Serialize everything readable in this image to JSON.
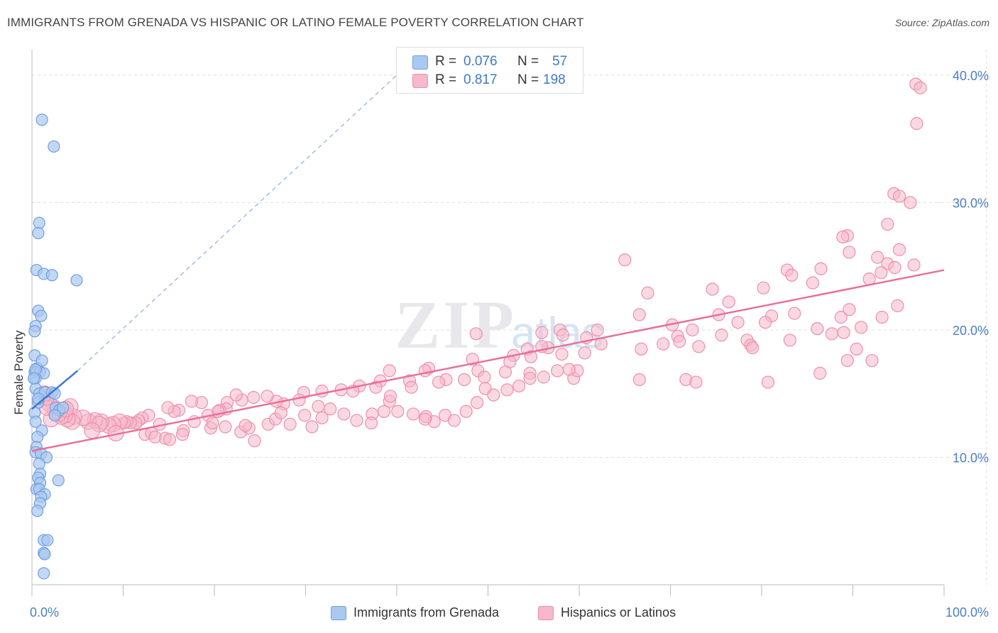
{
  "header": {
    "title": "IMMIGRANTS FROM GRENADA VS HISPANIC OR LATINO FEMALE POVERTY CORRELATION CHART",
    "source": "Source: ZipAtlas.com"
  },
  "legend": {
    "rows": [
      {
        "r_label": "R =",
        "r_value": "0.076",
        "n_label": "N =",
        "n_value": "57"
      },
      {
        "r_label": "R =",
        "r_value": "0.817",
        "n_label": "N =",
        "n_value": "198"
      }
    ]
  },
  "colors": {
    "blue_fill": "#aac8f0",
    "blue_stroke": "#6f9fe0",
    "blue_line": "#3c78d8",
    "pink_fill": "#f6b8cb",
    "pink_stroke": "#ee8fad",
    "pink_line": "#e8709a",
    "grid": "#dddddd",
    "tick_text": "#4a7fc7"
  },
  "chart_data": {
    "type": "scatter",
    "title": "IMMIGRANTS FROM GRENADA VS HISPANIC OR LATINO FEMALE POVERTY CORRELATION CHART",
    "xlabel": "",
    "ylabel": "Female Poverty",
    "xlim": [
      0,
      100
    ],
    "ylim": [
      0,
      42
    ],
    "x_tick_labels": [
      "0.0%",
      "100.0%"
    ],
    "y_ticks": [
      10,
      20,
      30,
      40
    ],
    "y_tick_labels": [
      "10.0%",
      "20.0%",
      "30.0%",
      "40.0%"
    ],
    "grid": true,
    "legend_placement": "bottom",
    "watermark": "ZIPatlas",
    "series": [
      {
        "name": "Immigrants from Grenada",
        "trend": {
          "x": [
            0,
            5
          ],
          "y": [
            13.8,
            16.8
          ],
          "dashed_extension_to": [
            40,
            40
          ]
        },
        "points": [
          [
            1.1,
            36.5
          ],
          [
            2.4,
            34.4
          ],
          [
            0.8,
            28.4
          ],
          [
            0.7,
            27.6
          ],
          [
            0.5,
            24.7
          ],
          [
            1.3,
            24.4
          ],
          [
            2.2,
            24.3
          ],
          [
            4.9,
            23.9
          ],
          [
            0.7,
            21.5
          ],
          [
            1.0,
            21.1
          ],
          [
            0.4,
            20.3
          ],
          [
            0.3,
            19.9
          ],
          [
            0.3,
            18.0
          ],
          [
            0.6,
            17.0
          ],
          [
            0.3,
            16.7
          ],
          [
            0.5,
            16.7
          ],
          [
            0.9,
            16.7
          ],
          [
            1.3,
            16.6
          ],
          [
            1.1,
            17.6
          ],
          [
            0.4,
            16.2
          ],
          [
            0.4,
            15.4
          ],
          [
            0.8,
            15.0
          ],
          [
            1.4,
            15.1
          ],
          [
            2.2,
            15.1
          ],
          [
            2.5,
            15.0
          ],
          [
            0.7,
            14.3
          ],
          [
            0.7,
            14.6
          ],
          [
            2.6,
            13.9
          ],
          [
            3.0,
            13.7
          ],
          [
            3.4,
            13.9
          ],
          [
            2.5,
            13.3
          ],
          [
            0.3,
            13.5
          ],
          [
            0.4,
            12.8
          ],
          [
            1.1,
            12.1
          ],
          [
            0.6,
            11.6
          ],
          [
            0.5,
            10.8
          ],
          [
            0.4,
            10.4
          ],
          [
            1.0,
            10.3
          ],
          [
            1.6,
            10.0
          ],
          [
            0.8,
            9.5
          ],
          [
            0.9,
            8.7
          ],
          [
            0.7,
            8.4
          ],
          [
            2.9,
            8.2
          ],
          [
            0.9,
            8.0
          ],
          [
            0.5,
            7.5
          ],
          [
            0.8,
            7.5
          ],
          [
            1.4,
            7.1
          ],
          [
            1.0,
            6.9
          ],
          [
            0.9,
            6.4
          ],
          [
            0.6,
            5.8
          ],
          [
            1.3,
            3.5
          ],
          [
            1.7,
            3.5
          ],
          [
            1.3,
            2.5
          ],
          [
            1.4,
            2.4
          ],
          [
            1.3,
            0.9
          ],
          [
            0.4,
            16.9
          ],
          [
            0.2,
            16.2
          ]
        ]
      },
      {
        "name": "Hispanics or Latinos",
        "trend": {
          "x": [
            0,
            100
          ],
          "y": [
            10.5,
            24.7
          ]
        },
        "points": [
          [
            96.9,
            39.3
          ],
          [
            97.4,
            39.0
          ],
          [
            97.0,
            36.2
          ],
          [
            94.5,
            30.7
          ],
          [
            95.1,
            30.5
          ],
          [
            96.3,
            30.0
          ],
          [
            93.8,
            28.3
          ],
          [
            89.4,
            27.4
          ],
          [
            88.9,
            27.3
          ],
          [
            95.1,
            26.3
          ],
          [
            89.6,
            26.1
          ],
          [
            92.7,
            25.7
          ],
          [
            93.8,
            25.2
          ],
          [
            94.6,
            24.9
          ],
          [
            96.7,
            25.1
          ],
          [
            93.1,
            24.5
          ],
          [
            65.0,
            25.5
          ],
          [
            86.5,
            24.8
          ],
          [
            82.8,
            24.7
          ],
          [
            83.3,
            24.3
          ],
          [
            91.8,
            24.0
          ],
          [
            85.6,
            23.7
          ],
          [
            74.6,
            23.2
          ],
          [
            80.2,
            23.3
          ],
          [
            67.5,
            22.9
          ],
          [
            76.4,
            22.2
          ],
          [
            94.9,
            21.9
          ],
          [
            89.6,
            21.6
          ],
          [
            83.6,
            21.3
          ],
          [
            75.3,
            21.2
          ],
          [
            66.6,
            21.2
          ],
          [
            93.2,
            21.0
          ],
          [
            88.7,
            21.0
          ],
          [
            81.1,
            21.1
          ],
          [
            80.4,
            20.6
          ],
          [
            77.4,
            20.6
          ],
          [
            70.2,
            20.4
          ],
          [
            90.9,
            20.2
          ],
          [
            86.1,
            20.1
          ],
          [
            72.4,
            20.0
          ],
          [
            62.0,
            20.0
          ],
          [
            57.9,
            20.0
          ],
          [
            55.9,
            19.8
          ],
          [
            48.7,
            19.7
          ],
          [
            58.2,
            19.6
          ],
          [
            60.8,
            19.4
          ],
          [
            70.8,
            19.5
          ],
          [
            71.0,
            19.1
          ],
          [
            69.2,
            18.9
          ],
          [
            62.4,
            18.9
          ],
          [
            87.7,
            19.7
          ],
          [
            89.0,
            19.8
          ],
          [
            75.6,
            19.6
          ],
          [
            78.4,
            19.2
          ],
          [
            83.1,
            19.2
          ],
          [
            90.4,
            18.5
          ],
          [
            78.8,
            18.8
          ],
          [
            79.0,
            18.6
          ],
          [
            73.1,
            18.7
          ],
          [
            66.8,
            18.5
          ],
          [
            60.6,
            18.2
          ],
          [
            56.6,
            18.6
          ],
          [
            55.9,
            18.7
          ],
          [
            54.3,
            18.5
          ],
          [
            58.1,
            18.1
          ],
          [
            54.7,
            17.9
          ],
          [
            52.8,
            18.0
          ],
          [
            52.4,
            17.5
          ],
          [
            48.3,
            17.7
          ],
          [
            48.9,
            16.8
          ],
          [
            54.6,
            16.6
          ],
          [
            59.4,
            16.2
          ],
          [
            66.6,
            16.1
          ],
          [
            71.7,
            16.1
          ],
          [
            72.8,
            15.9
          ],
          [
            80.7,
            15.9
          ],
          [
            86.4,
            16.6
          ],
          [
            89.4,
            17.6
          ],
          [
            92.1,
            17.6
          ],
          [
            59.8,
            16.8
          ],
          [
            58.9,
            16.9
          ],
          [
            57.6,
            16.8
          ],
          [
            56.1,
            16.3
          ],
          [
            54.6,
            16.2
          ],
          [
            51.9,
            16.7
          ],
          [
            49.6,
            16.3
          ],
          [
            47.4,
            16.1
          ],
          [
            45.4,
            16.1
          ],
          [
            44.6,
            15.9
          ],
          [
            43.5,
            17.0
          ],
          [
            43.1,
            16.8
          ],
          [
            41.4,
            16.0
          ],
          [
            41.6,
            15.5
          ],
          [
            39.2,
            16.8
          ],
          [
            38.2,
            16.0
          ],
          [
            37.7,
            15.5
          ],
          [
            35.9,
            15.6
          ],
          [
            35.2,
            15.2
          ],
          [
            33.9,
            15.3
          ],
          [
            31.8,
            15.2
          ],
          [
            29.8,
            15.1
          ],
          [
            29.3,
            14.5
          ],
          [
            27.6,
            14.2
          ],
          [
            26.8,
            14.4
          ],
          [
            25.8,
            14.8
          ],
          [
            24.3,
            14.7
          ],
          [
            23.0,
            14.5
          ],
          [
            22.4,
            14.9
          ],
          [
            21.4,
            14.3
          ],
          [
            21.3,
            13.8
          ],
          [
            20.6,
            13.7
          ],
          [
            20.4,
            13.6
          ],
          [
            19.3,
            13.3
          ],
          [
            18.6,
            14.3
          ],
          [
            17.5,
            14.4
          ],
          [
            16.1,
            13.7
          ],
          [
            15.6,
            13.6
          ],
          [
            14.9,
            13.9
          ],
          [
            14.0,
            12.6
          ],
          [
            12.8,
            13.3
          ],
          [
            12.1,
            13.1
          ],
          [
            11.7,
            12.9
          ],
          [
            11.4,
            12.7
          ],
          [
            10.8,
            12.7
          ],
          [
            10.4,
            12.8
          ],
          [
            10.1,
            12.7
          ],
          [
            9.6,
            12.8
          ],
          [
            8.9,
            12.6
          ],
          [
            8.4,
            12.5
          ],
          [
            7.6,
            12.8
          ],
          [
            6.9,
            12.9
          ],
          [
            6.2,
            12.8
          ],
          [
            5.6,
            13.1
          ],
          [
            4.6,
            13.2
          ],
          [
            4.4,
            12.8
          ],
          [
            3.9,
            13.0
          ],
          [
            3.6,
            13.3
          ],
          [
            3.5,
            13.7
          ],
          [
            3.2,
            13.2
          ],
          [
            2.9,
            13.4
          ],
          [
            2.6,
            13.6
          ],
          [
            2.4,
            13.9
          ],
          [
            2.1,
            13.0
          ],
          [
            1.9,
            14.2
          ],
          [
            1.7,
            13.9
          ],
          [
            1.6,
            14.7
          ],
          [
            1.4,
            15.0
          ],
          [
            12.4,
            11.8
          ],
          [
            13.1,
            11.9
          ],
          [
            14.6,
            11.5
          ],
          [
            15.1,
            11.4
          ],
          [
            16.6,
            12.1
          ],
          [
            17.8,
            12.8
          ],
          [
            19.6,
            12.3
          ],
          [
            21.2,
            12.4
          ],
          [
            22.9,
            12.0
          ],
          [
            23.8,
            12.3
          ],
          [
            24.4,
            11.3
          ],
          [
            25.9,
            12.6
          ],
          [
            26.7,
            13.0
          ],
          [
            28.3,
            12.6
          ],
          [
            29.9,
            13.3
          ],
          [
            30.7,
            12.4
          ],
          [
            31.8,
            13.1
          ],
          [
            32.7,
            13.8
          ],
          [
            34.2,
            13.4
          ],
          [
            35.6,
            12.9
          ],
          [
            37.3,
            13.4
          ],
          [
            38.6,
            13.6
          ],
          [
            39.2,
            14.4
          ],
          [
            40.1,
            13.6
          ],
          [
            41.8,
            13.4
          ],
          [
            43.2,
            13.2
          ],
          [
            44.1,
            12.8
          ],
          [
            45.3,
            13.3
          ],
          [
            46.3,
            12.9
          ],
          [
            47.6,
            13.6
          ],
          [
            48.8,
            14.3
          ],
          [
            49.7,
            15.4
          ],
          [
            50.6,
            14.9
          ],
          [
            52.1,
            15.3
          ],
          [
            53.4,
            15.6
          ],
          [
            43.1,
            13.0
          ],
          [
            39.3,
            14.8
          ],
          [
            37.2,
            12.7
          ],
          [
            31.4,
            14.0
          ],
          [
            27.3,
            13.5
          ],
          [
            23.4,
            12.5
          ],
          [
            19.8,
            12.7
          ],
          [
            16.5,
            11.8
          ],
          [
            13.5,
            11.6
          ],
          [
            9.2,
            11.9
          ],
          [
            7.4,
            12.6
          ],
          [
            6.6,
            12.1
          ],
          [
            4.2,
            14.0
          ],
          [
            3.7,
            13.8
          ]
        ]
      }
    ]
  }
}
